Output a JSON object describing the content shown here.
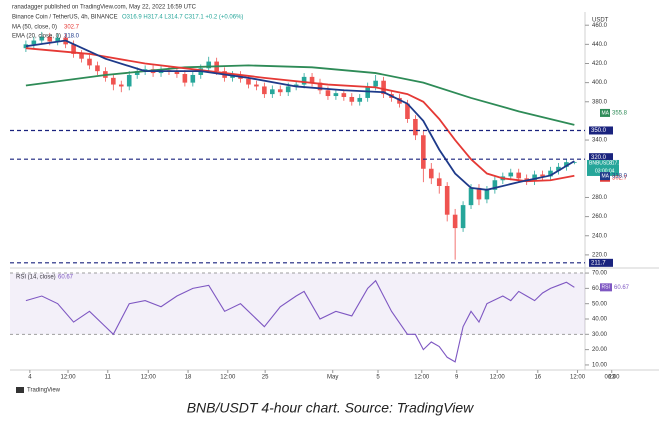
{
  "chart_data": [
    {
      "type": "candlestick",
      "published": "ranadagger published on TradingView.com, May 22, 2022 16:59 UTC",
      "title": "Binance Coin / TetherUS, 4h, BINANCE",
      "ohlc_label": "O316.9 H317.4 L314.7 C317.1 +0.2 (+0.06%)",
      "y_unit": "USDT",
      "up_color": "#26a69a",
      "down_color": "#ef5350",
      "x": [
        0,
        1,
        2,
        3,
        4,
        5,
        6,
        7,
        8,
        9,
        10,
        11,
        12,
        13,
        14,
        15,
        16,
        17,
        18,
        19,
        20,
        21,
        22,
        23,
        24,
        25,
        26,
        27,
        28,
        29,
        30,
        31,
        32,
        33,
        34,
        35,
        36,
        37,
        38,
        39,
        40,
        41,
        42,
        43,
        44,
        45,
        46,
        47,
        48,
        49,
        50,
        51,
        52,
        53,
        54,
        55,
        56,
        57,
        58,
        59,
        60,
        61,
        62,
        63,
        64,
        65,
        66,
        67,
        68,
        69
      ],
      "open": [
        436,
        440,
        444,
        448,
        443,
        447,
        440,
        430,
        425,
        418,
        412,
        405,
        398,
        396,
        408,
        412,
        414,
        410,
        413,
        412,
        409,
        400,
        408,
        415,
        422,
        412,
        405,
        408,
        404,
        398,
        396,
        388,
        393,
        390,
        396,
        398,
        406,
        400,
        392,
        386,
        389,
        385,
        380,
        384,
        396,
        402,
        388,
        384,
        378,
        362,
        345,
        310,
        300,
        292,
        262,
        248,
        272,
        290,
        278,
        288,
        298,
        302,
        306,
        300,
        297,
        304,
        302,
        308,
        312,
        316.9
      ],
      "high": [
        444,
        448,
        453,
        452,
        451,
        451,
        444,
        434,
        429,
        422,
        416,
        409,
        402,
        412,
        416,
        418,
        418,
        417,
        417,
        416,
        413,
        412,
        419,
        427,
        426,
        416,
        412,
        412,
        408,
        402,
        400,
        397,
        397,
        400,
        402,
        410,
        410,
        404,
        396,
        393,
        393,
        389,
        388,
        400,
        408,
        406,
        392,
        388,
        382,
        366,
        350,
        316,
        306,
        296,
        268,
        276,
        294,
        294,
        292,
        302,
        306,
        310,
        310,
        304,
        308,
        308,
        312,
        316,
        320,
        317.4
      ],
      "low": [
        432,
        436,
        440,
        439,
        439,
        436,
        426,
        421,
        414,
        408,
        401,
        392,
        390,
        392,
        404,
        408,
        406,
        406,
        408,
        405,
        396,
        396,
        404,
        411,
        408,
        401,
        401,
        400,
        394,
        392,
        384,
        384,
        386,
        386,
        392,
        394,
        396,
        388,
        382,
        382,
        381,
        376,
        376,
        380,
        392,
        384,
        380,
        374,
        358,
        340,
        296,
        294,
        284,
        255,
        215,
        244,
        268,
        272,
        274,
        284,
        294,
        298,
        296,
        293,
        293,
        298,
        298,
        304,
        308,
        314.7
      ],
      "close": [
        440,
        444,
        448,
        443,
        447,
        440,
        430,
        425,
        418,
        412,
        405,
        398,
        396,
        408,
        412,
        414,
        410,
        413,
        412,
        409,
        400,
        408,
        415,
        422,
        412,
        405,
        408,
        404,
        398,
        396,
        388,
        393,
        390,
        396,
        398,
        406,
        400,
        392,
        386,
        389,
        385,
        380,
        384,
        396,
        402,
        388,
        384,
        378,
        362,
        345,
        310,
        300,
        292,
        262,
        248,
        272,
        290,
        278,
        288,
        298,
        302,
        306,
        300,
        297,
        304,
        302,
        308,
        312,
        316.9,
        317.1
      ],
      "overlays": [
        {
          "tag": "MA",
          "color": "#2e8b57",
          "last_label": "355.8",
          "x": [
            0,
            10,
            20,
            28,
            36,
            44,
            50,
            56,
            62,
            69
          ],
          "values": [
            397,
            408,
            416,
            418,
            416,
            410,
            400,
            384,
            370,
            355.8
          ]
        },
        {
          "name": "MA (50, close, 0)",
          "tag": "MA",
          "color": "#e53935",
          "last_label": "302.7",
          "x": [
            0,
            8,
            15,
            22,
            30,
            38,
            44,
            48,
            50,
            52,
            54,
            56,
            58,
            60,
            63,
            66,
            69
          ],
          "values": [
            436,
            430,
            420,
            413,
            405,
            398,
            395,
            388,
            380,
            362,
            340,
            320,
            305,
            300,
            297,
            298,
            302.7
          ]
        },
        {
          "name": "EMA (20, close, 0)",
          "tag": "MA",
          "color": "#1e3a8a",
          "last_label": "318.0",
          "x": [
            0,
            5,
            10,
            15,
            22,
            28,
            34,
            40,
            45,
            48,
            50,
            52,
            54,
            56,
            58,
            62,
            66,
            69
          ],
          "values": [
            438,
            444,
            425,
            412,
            412,
            405,
            396,
            392,
            390,
            378,
            360,
            330,
            305,
            290,
            288,
            296,
            303,
            318
          ]
        }
      ],
      "levels": [
        {
          "value": 350,
          "label": "350.0"
        },
        {
          "value": 320,
          "label": "320.0"
        },
        {
          "value": 211.7,
          "label": "211.7"
        }
      ],
      "level_color": "#1a237e",
      "last_price": {
        "symbol": "BNBUSDT",
        "price": 317.1,
        "countdown": "03:00:04",
        "color": "#26a69a"
      },
      "xlim": [
        -2,
        76
      ],
      "xticks": [
        {
          "value": 0.5,
          "label": "4"
        },
        {
          "value": 5.3,
          "label": "12:00"
        },
        {
          "value": 10.3,
          "label": "11"
        },
        {
          "value": 15.4,
          "label": "12:00"
        },
        {
          "value": 20.4,
          "label": "18"
        },
        {
          "value": 25.4,
          "label": "12:00"
        },
        {
          "value": 30.1,
          "label": "25"
        },
        {
          "value": 38.6,
          "label": "May"
        },
        {
          "value": 44.3,
          "label": "5"
        },
        {
          "value": 49.8,
          "label": "12:00"
        },
        {
          "value": 54.2,
          "label": "9"
        },
        {
          "value": 59.3,
          "label": "12:00"
        },
        {
          "value": 64.4,
          "label": "16"
        },
        {
          "value": 69.4,
          "label": "12:00"
        },
        {
          "value": 73.7,
          "label": "23"
        }
      ],
      "ylim": [
        206.3,
        473.8
      ],
      "yticks": [
        {
          "value": 460,
          "label": "460.0"
        },
        {
          "value": 440,
          "label": "440.0"
        },
        {
          "value": 420,
          "label": "420.0"
        },
        {
          "value": 400,
          "label": "400.0"
        },
        {
          "value": 380,
          "label": "380.0"
        },
        {
          "value": 340,
          "label": "340.0"
        },
        {
          "value": 280,
          "label": "280.0"
        },
        {
          "value": 260,
          "label": "260.0"
        },
        {
          "value": 240,
          "label": "240.0"
        },
        {
          "value": 220,
          "label": "220.0"
        }
      ]
    },
    {
      "type": "line",
      "title": "RSI (14, close)",
      "tag": "RSI",
      "color": "#7e57c2",
      "value_label": "60.67",
      "x": [
        0,
        2,
        4,
        6,
        8,
        10,
        11,
        13,
        15,
        17,
        19,
        21,
        23,
        25,
        27,
        30,
        32,
        34,
        35,
        37,
        39,
        41,
        43,
        44,
        46,
        48,
        49,
        50,
        51,
        52,
        53,
        54,
        55,
        56,
        57,
        58,
        60,
        61,
        62,
        63,
        64,
        65,
        66,
        67,
        68,
        69
      ],
      "values": [
        52,
        55,
        50,
        38,
        45,
        35,
        30,
        50,
        52,
        48,
        55,
        60,
        62,
        45,
        50,
        35,
        48,
        55,
        58,
        40,
        45,
        42,
        60,
        65,
        45,
        30,
        30,
        20,
        25,
        22,
        15,
        12,
        35,
        45,
        38,
        50,
        55,
        52,
        58,
        55,
        52,
        57,
        60,
        62,
        64,
        60.67
      ],
      "band": [
        30,
        70
      ],
      "ylim": [
        6.7,
        73.3
      ],
      "yticks": [
        {
          "value": 70,
          "label": "70.00"
        },
        {
          "value": 60,
          "label": "60.00"
        },
        {
          "value": 50,
          "label": "50.00"
        },
        {
          "value": 40,
          "label": "40.00"
        },
        {
          "value": 30,
          "label": "30.00"
        },
        {
          "value": 20,
          "label": "20.00"
        },
        {
          "value": 10,
          "label": "10.00"
        }
      ]
    }
  ],
  "extra_tick": "06:00",
  "logo": "TradingView",
  "caption": "BNB/USDT 4-hour chart. Source: TradingView"
}
